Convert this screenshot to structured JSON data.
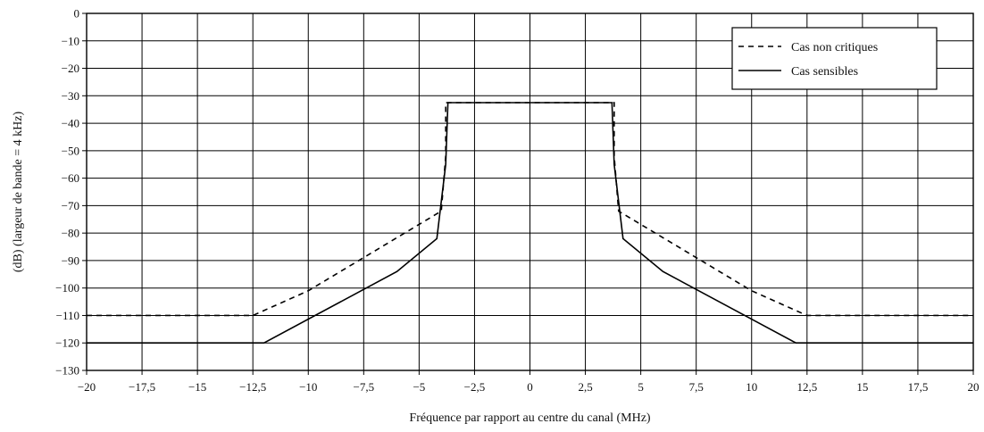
{
  "chart_data": {
    "type": "line",
    "title": "",
    "xlabel": "Fréquence par rapport au centre du canal (MHz)",
    "ylabel": "(dB) (largeur de bande = 4 kHz)",
    "xlim": [
      -20,
      20
    ],
    "ylim": [
      -130,
      0
    ],
    "xticks": [
      -20,
      -17.5,
      -15,
      -12.5,
      -10,
      -7.5,
      -5,
      -2.5,
      0,
      2.5,
      5,
      7.5,
      10,
      12.5,
      15,
      17.5,
      20
    ],
    "xtick_labels": [
      "−20",
      "−17,5",
      "−15",
      "−12,5",
      "−10",
      "−7,5",
      "−5",
      "−2,5",
      "0",
      "2,5",
      "5",
      "7,5",
      "10",
      "12,5",
      "15",
      "17,5",
      "20"
    ],
    "yticks": [
      0,
      -10,
      -20,
      -30,
      -40,
      -50,
      -60,
      -70,
      -80,
      -90,
      -100,
      -110,
      -120,
      -130
    ],
    "ytick_labels": [
      "0",
      "−10",
      "−20",
      "−30",
      "−40",
      "−50",
      "−60",
      "−70",
      "−80",
      "−90",
      "−100",
      "−110",
      "−120",
      "−130"
    ],
    "grid": true,
    "legend_position": "top-right",
    "series": [
      {
        "name": "Cas non critiques",
        "style": "dashed",
        "color": "#000000",
        "x": [
          -20,
          -12.5,
          -10,
          -4,
          -3.8,
          -3.8,
          3.8,
          3.8,
          4,
          10,
          12.5,
          20
        ],
        "y": [
          -110,
          -110,
          -101,
          -72,
          -52,
          -32.5,
          -32.5,
          -52,
          -72,
          -101,
          -110,
          -110
        ]
      },
      {
        "name": "Cas sensibles",
        "style": "solid",
        "color": "#000000",
        "x": [
          -20,
          -12,
          -6,
          -4.2,
          -3.8,
          -3.7,
          3.7,
          3.8,
          4.2,
          6,
          12,
          20
        ],
        "y": [
          -120,
          -120,
          -94,
          -82,
          -55,
          -32.5,
          -32.5,
          -55,
          -82,
          -94,
          -120,
          -120
        ]
      }
    ]
  }
}
